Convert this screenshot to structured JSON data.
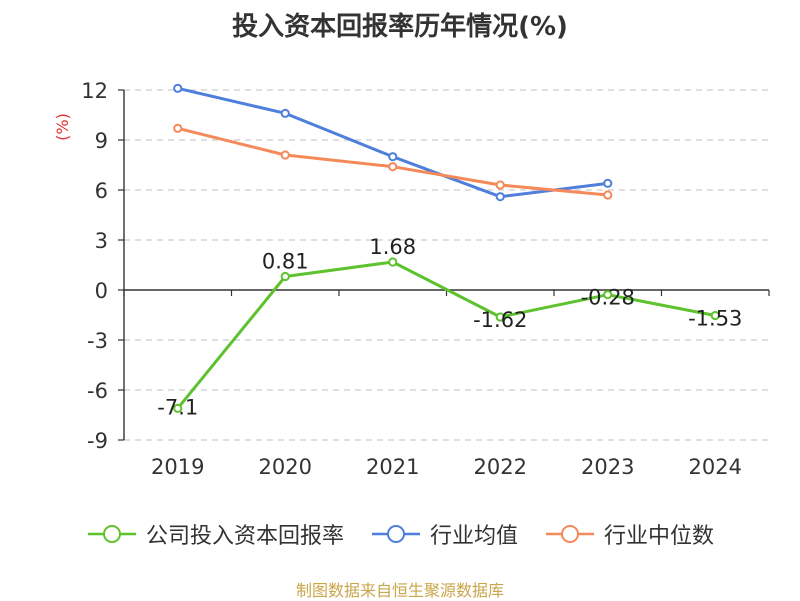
{
  "chart_data": {
    "type": "line",
    "title": "投入资本回报率历年情况(%)",
    "ylabel": "(%)",
    "categories": [
      "2019",
      "2020",
      "2021",
      "2022",
      "2023",
      "2024"
    ],
    "ylim": [
      -9,
      12
    ],
    "yticks": [
      12,
      9,
      6,
      3,
      0,
      -3,
      -6,
      -9
    ],
    "grid": true,
    "legend_position": "bottom",
    "series": [
      {
        "name": "公司投入资本回报率",
        "color": "#5ec22f",
        "values": [
          -7.1,
          0.81,
          1.68,
          -1.62,
          -0.28,
          -1.53
        ],
        "labels": [
          "-7.1",
          "0.81",
          "1.68",
          "-1.62",
          "-0.28",
          "-1.53"
        ]
      },
      {
        "name": "行业均值",
        "color": "#4f7fdc",
        "values": [
          12.1,
          10.6,
          8.0,
          5.6,
          6.4,
          null
        ]
      },
      {
        "name": "行业中位数",
        "color": "#f5895a",
        "values": [
          9.7,
          8.1,
          7.4,
          6.3,
          5.7,
          null
        ]
      }
    ]
  },
  "footer": {
    "source": "制图数据来自恒生聚源数据库"
  }
}
